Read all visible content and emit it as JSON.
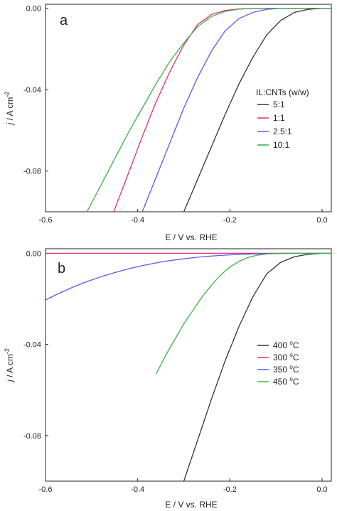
{
  "chart_data": [
    {
      "type": "line",
      "panel_label": "a",
      "xlabel": "E / V vs. RHE",
      "ylabel_italic": "j",
      "ylabel_rest": " / A cm",
      "ylabel_sup": "-2",
      "xlim": [
        -0.6,
        0.02
      ],
      "ylim": [
        -0.1,
        0.002
      ],
      "x_ticks": [
        -0.6,
        -0.4,
        -0.2,
        0.0
      ],
      "x_tick_labels": [
        "-0.6",
        "-0.4",
        "-0.2",
        "0.0"
      ],
      "y_ticks": [
        0.0,
        -0.04,
        -0.08
      ],
      "y_tick_labels": [
        "0.00",
        "-0.04",
        "-0.08"
      ],
      "grid": false,
      "legend_title": "IL:CNTs (w/w)",
      "legend_position": "right-middle",
      "series": [
        {
          "name": "5:1",
          "color": "#333333",
          "x": [
            -0.3,
            -0.27,
            -0.24,
            -0.21,
            -0.18,
            -0.15,
            -0.12,
            -0.09,
            -0.06,
            -0.03,
            0.0,
            0.02
          ],
          "y": [
            -0.1,
            -0.084,
            -0.068,
            -0.052,
            -0.037,
            -0.024,
            -0.013,
            -0.006,
            -0.002,
            -0.0005,
            0.0,
            0.0
          ]
        },
        {
          "name": "1:1",
          "color": "#e0306a",
          "x": [
            -0.452,
            -0.42,
            -0.39,
            -0.36,
            -0.33,
            -0.3,
            -0.27,
            -0.24,
            -0.21,
            -0.18,
            -0.15,
            -0.1,
            -0.05,
            0.0,
            0.02
          ],
          "y": [
            -0.1,
            -0.081,
            -0.063,
            -0.046,
            -0.031,
            -0.018,
            -0.008,
            -0.003,
            -0.001,
            -0.0003,
            0.0,
            0.0,
            0.0,
            0.0,
            0.0
          ]
        },
        {
          "name": "2.5:1",
          "color": "#5a5aef",
          "x": [
            -0.39,
            -0.36,
            -0.33,
            -0.3,
            -0.27,
            -0.24,
            -0.21,
            -0.18,
            -0.15,
            -0.12,
            -0.09,
            -0.05,
            0.0,
            0.02
          ],
          "y": [
            -0.1,
            -0.083,
            -0.066,
            -0.049,
            -0.034,
            -0.021,
            -0.011,
            -0.005,
            -0.002,
            -0.0005,
            0.0,
            0.0,
            0.0,
            0.0
          ]
        },
        {
          "name": "10:1",
          "color": "#3cb043",
          "x": [
            -0.51,
            -0.48,
            -0.45,
            -0.42,
            -0.39,
            -0.36,
            -0.33,
            -0.3,
            -0.27,
            -0.24,
            -0.21,
            -0.18,
            -0.15,
            -0.1,
            -0.05,
            0.0,
            0.02
          ],
          "y": [
            -0.1,
            -0.087,
            -0.074,
            -0.061,
            -0.049,
            -0.037,
            -0.026,
            -0.017,
            -0.009,
            -0.004,
            -0.0015,
            -0.0004,
            0.0,
            0.0,
            0.0,
            0.0,
            0.0
          ]
        }
      ]
    },
    {
      "type": "line",
      "panel_label": "b",
      "xlabel": "E / V vs. RHE",
      "ylabel_italic": "j",
      "ylabel_rest": " / A cm",
      "ylabel_sup": "-2",
      "xlim": [
        -0.6,
        0.02
      ],
      "ylim": [
        -0.1,
        0.002
      ],
      "x_ticks": [
        -0.6,
        -0.4,
        -0.2,
        0.0
      ],
      "x_tick_labels": [
        "-0.6",
        "-0.4",
        "-0.2",
        "0.0"
      ],
      "y_ticks": [
        0.0,
        -0.04,
        -0.08
      ],
      "y_tick_labels": [
        "0.00",
        "-0.04",
        "-0.08"
      ],
      "grid": false,
      "legend_position": "right-middle",
      "series": [
        {
          "name_value": "400",
          "name_unit": "C",
          "color": "#333333",
          "x": [
            -0.3,
            -0.27,
            -0.24,
            -0.21,
            -0.18,
            -0.15,
            -0.12,
            -0.09,
            -0.06,
            -0.03,
            0.0,
            0.02
          ],
          "y": [
            -0.1,
            -0.082,
            -0.064,
            -0.047,
            -0.032,
            -0.019,
            -0.009,
            -0.004,
            -0.0015,
            -0.0004,
            0.0,
            0.0
          ]
        },
        {
          "name_value": "300",
          "name_unit": "C",
          "color": "#e0306a",
          "x": [
            -0.6,
            -0.4,
            -0.2,
            0.0,
            0.02
          ],
          "y": [
            0.0,
            0.0,
            0.0,
            0.0,
            0.0
          ]
        },
        {
          "name_value": "350",
          "name_unit": "C",
          "color": "#5a5aef",
          "x": [
            -0.6,
            -0.57,
            -0.54,
            -0.51,
            -0.48,
            -0.45,
            -0.42,
            -0.39,
            -0.36,
            -0.33,
            -0.3,
            -0.27,
            -0.24,
            -0.21,
            -0.18,
            -0.15,
            -0.12,
            -0.09,
            -0.06,
            -0.03,
            0.0,
            0.02
          ],
          "y": [
            -0.0205,
            -0.0175,
            -0.0148,
            -0.0124,
            -0.0103,
            -0.0085,
            -0.0068,
            -0.0054,
            -0.0042,
            -0.0032,
            -0.0024,
            -0.0017,
            -0.0012,
            -0.0008,
            -0.0005,
            -0.0003,
            -0.00015,
            -5e-05,
            0.0,
            0.0,
            0.0,
            0.0
          ]
        },
        {
          "name_value": "450",
          "name_unit": "C",
          "color": "#3cb043",
          "x": [
            -0.36,
            -0.34,
            -0.32,
            -0.3,
            -0.28,
            -0.26,
            -0.24,
            -0.22,
            -0.2,
            -0.18,
            -0.16,
            -0.14,
            -0.12,
            -0.1,
            -0.05,
            0.0,
            0.02
          ],
          "y": [
            -0.053,
            -0.045,
            -0.038,
            -0.031,
            -0.025,
            -0.019,
            -0.014,
            -0.0095,
            -0.006,
            -0.0035,
            -0.0018,
            -0.0008,
            -0.0003,
            -0.0001,
            0.0,
            0.0,
            0.0
          ]
        }
      ]
    }
  ]
}
